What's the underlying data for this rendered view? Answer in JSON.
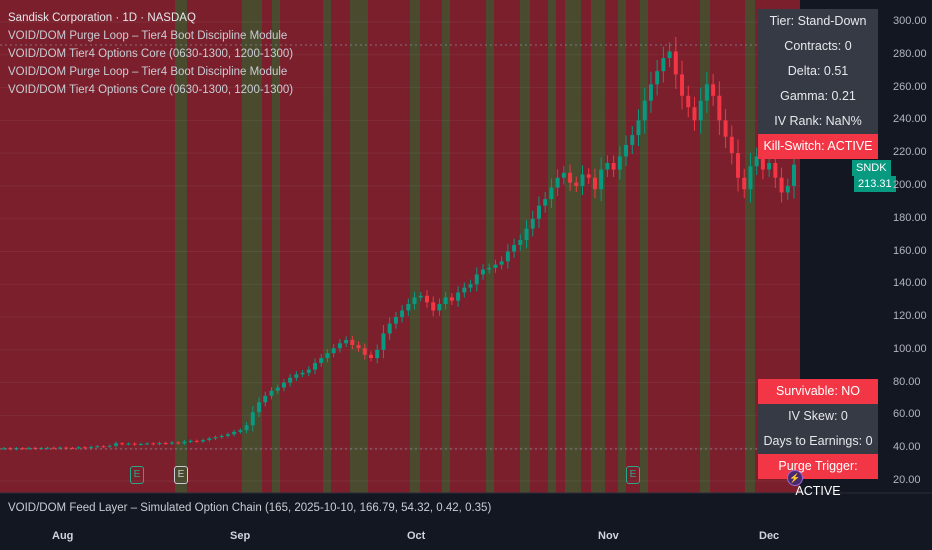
{
  "header": {
    "symbol_line": "Sandisk Corporation · 1D · NASDAQ",
    "indicators": [
      "VOID/DOM Purge Loop – Tier4 Boot Discipline Module",
      "VOID/DOM Tier4 Options Core (0630-1300, 1200-1300)",
      "VOID/DOM Purge Loop – Tier4 Boot Discipline Module",
      "VOID/DOM Tier4 Options Core (0630-1300, 1200-1300)"
    ]
  },
  "top_table": {
    "tier": "Tier: Stand-Down",
    "contracts": "Contracts: 0",
    "delta": "Delta: 0.51",
    "gamma": "Gamma: 0.21",
    "iv_rank": "IV Rank: NaN%",
    "kill_switch": "Kill-Switch: ACTIVE"
  },
  "bottom_table": {
    "survivable": "Survivable: NO",
    "iv_skew": "IV Skew: 0",
    "days_to_earnings": "Days to Earnings: 0",
    "purge_trigger": "Purge Trigger: ACTIVE"
  },
  "feed_layer": "VOID/DOM Feed Layer – Simulated Option Chain (165, 2025-10-10, 166.79, 54.32, 0.42, 0.35)",
  "price_tag": {
    "ticker": "SNDK",
    "price": "213.31"
  },
  "y_axis": [
    "300.00",
    "280.00",
    "260.00",
    "240.00",
    "220.00",
    "200.00",
    "180.00",
    "160.00",
    "140.00",
    "120.00",
    "100.00",
    "80.00",
    "60.00",
    "40.00",
    "20.00"
  ],
  "x_axis": [
    "Aug",
    "Sep",
    "Oct",
    "Nov",
    "Dec"
  ],
  "events": [
    {
      "label": "E"
    },
    {
      "label": "E"
    },
    {
      "label": "E"
    }
  ],
  "colors": {
    "up": "#089981",
    "down": "#f23645",
    "bg_red": "#7a1f2b",
    "bg_olive": "#4a4a2f",
    "panel": "#363a45"
  },
  "chart_data": {
    "type": "candlestick",
    "ylim": [
      20,
      300
    ],
    "closes": [
      40,
      39.5,
      40,
      39.8,
      40.2,
      39.9,
      40.1,
      40.3,
      40,
      40.4,
      40.2,
      40.1,
      40.6,
      40.3,
      40.8,
      41.2,
      41,
      41.5,
      43,
      42.5,
      42.8,
      42.3,
      42.6,
      42.9,
      42.5,
      43.2,
      42.8,
      43.5,
      43,
      44,
      44.5,
      44.2,
      45,
      46,
      46.8,
      47.5,
      48.5,
      50,
      51,
      54,
      62,
      68,
      72,
      75,
      77,
      80,
      83,
      85,
      86,
      88,
      92,
      95,
      98,
      101,
      104,
      106,
      103,
      101,
      97,
      95,
      100,
      110,
      116,
      120,
      124,
      128,
      132,
      133,
      129,
      124,
      128,
      132,
      130,
      135,
      138,
      140,
      146,
      149,
      150,
      152,
      154,
      160,
      164,
      167,
      174,
      180,
      188,
      192,
      199,
      205,
      208,
      202,
      200,
      207,
      205,
      198,
      210,
      214,
      210,
      218,
      225,
      231,
      240,
      252,
      262,
      270,
      278,
      282,
      268,
      255,
      248,
      240,
      252,
      262,
      255,
      240,
      230,
      220,
      205,
      198,
      212,
      218,
      210,
      214,
      205,
      196,
      200,
      213
    ]
  }
}
